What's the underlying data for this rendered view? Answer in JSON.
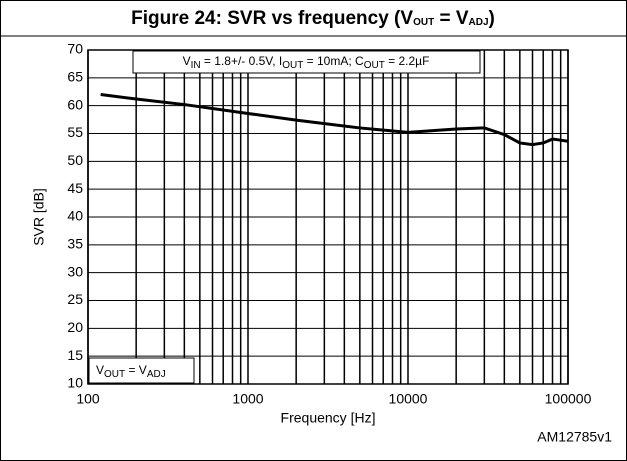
{
  "chart_data": {
    "type": "line",
    "title": [
      "Figure 24: SVR vs frequency (V",
      "OUT",
      " = V",
      "ADJ",
      ")"
    ],
    "annotations": [
      [
        "V",
        "IN",
        " = 1.8+/- 0.5V, I",
        "OUT",
        " = 10mA; C",
        "OUT",
        " = 2.2µF"
      ],
      [
        "V",
        "OUT",
        " = V",
        "ADJ",
        ""
      ]
    ],
    "footer": "AM12785v1",
    "xlabel": "Frequency [Hz]",
    "ylabel": "SVR [dB]",
    "xlog": true,
    "xlim": [
      100,
      100000
    ],
    "xticks": [
      100,
      1000,
      10000,
      100000
    ],
    "xminor": [
      200,
      300,
      400,
      500,
      600,
      700,
      800,
      900,
      2000,
      3000,
      4000,
      5000,
      6000,
      7000,
      8000,
      9000,
      20000,
      30000,
      40000,
      50000,
      60000,
      70000,
      80000,
      90000
    ],
    "ylim": [
      10,
      70
    ],
    "yticks": [
      10,
      15,
      20,
      25,
      30,
      35,
      40,
      45,
      50,
      55,
      60,
      65,
      70
    ],
    "grid": true,
    "x": [
      120,
      200,
      400,
      1000,
      2000,
      5000,
      10000,
      20000,
      30000,
      40000,
      50000,
      60000,
      70000,
      80000,
      90000,
      100000
    ],
    "series": [
      {
        "name": null,
        "color": "#000000",
        "values": [
          62,
          61.2,
          60.2,
          58.6,
          57.4,
          56,
          55.2,
          55.8,
          56,
          54.8,
          53.3,
          53,
          53.3,
          54,
          53.8,
          53.6
        ]
      }
    ]
  }
}
